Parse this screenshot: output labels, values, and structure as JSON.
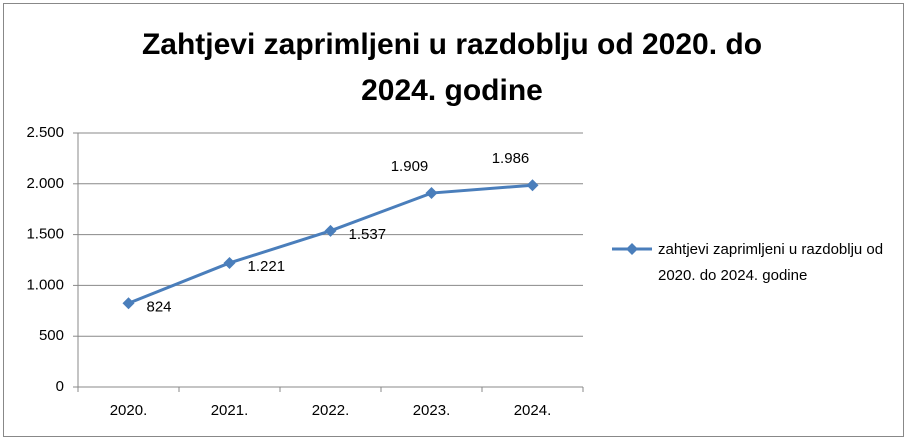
{
  "chart_data": {
    "type": "line",
    "title": "Zahtjevi zaprimljeni u razdoblju od 2020. do 2024. godine",
    "categories": [
      "2020.",
      "2021.",
      "2022.",
      "2023.",
      "2024."
    ],
    "series": [
      {
        "name": "zahtjevi zaprimljeni u razdoblju od 2020. do 2024. godine",
        "color": "#4a7ebb",
        "values": [
          824,
          1221,
          1537,
          1909,
          1986
        ],
        "value_labels": [
          "824",
          "1.221",
          "1.537",
          "1.909",
          "1.986"
        ]
      }
    ],
    "ylim": [
      0,
      2500
    ],
    "yticks": [
      0,
      500,
      {
        "value": 1000,
        "label": "1.000"
      },
      {
        "value": 1500,
        "label": "1.500"
      },
      {
        "value": 2000,
        "label": "2.000"
      },
      {
        "value": 2500,
        "label": "2.500"
      }
    ],
    "grid": true,
    "legend": "right"
  }
}
